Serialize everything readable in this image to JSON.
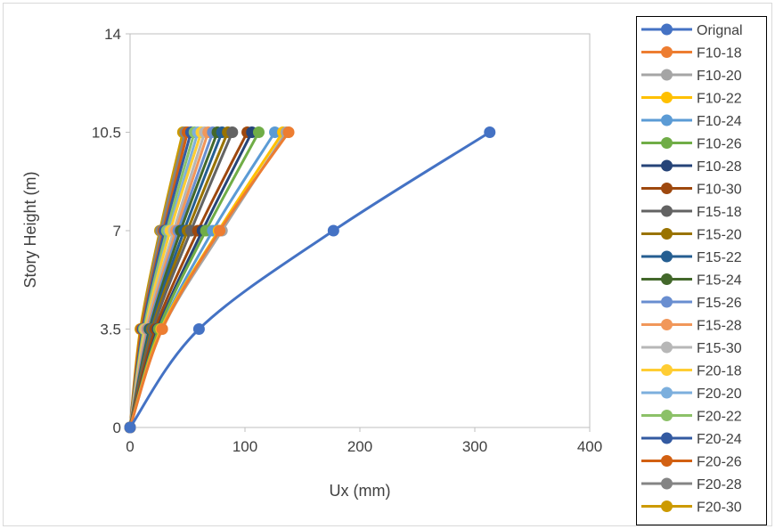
{
  "chart_data": {
    "type": "line",
    "title": "",
    "xlabel": "Ux (mm)",
    "ylabel": "Story Height (m)",
    "xlim": [
      0,
      400
    ],
    "ylim": [
      0,
      14
    ],
    "x_ticks": [
      "0",
      "100",
      "200",
      "300",
      "400"
    ],
    "y_ticks": [
      "0",
      "3.5",
      "7",
      "10.5",
      "14"
    ],
    "y_tick_values": [
      0,
      3.5,
      7,
      10.5,
      14
    ],
    "x_tick_values": [
      0,
      100,
      200,
      300,
      400
    ],
    "y": [
      0,
      3.5,
      7,
      10.5
    ],
    "grid": false,
    "legend_position": "right",
    "series": [
      {
        "name": "Orignal",
        "color": "#4472C4",
        "x": [
          0,
          60,
          177,
          313
        ]
      },
      {
        "name": "F10-18",
        "color": "#ED7D31",
        "x": [
          0,
          28,
          78,
          138
        ]
      },
      {
        "name": "F10-20",
        "color": "#A5A5A5",
        "x": [
          0,
          28,
          80,
          136
        ]
      },
      {
        "name": "F10-22",
        "color": "#FFC000",
        "x": [
          0,
          27,
          77,
          133
        ]
      },
      {
        "name": "F10-24",
        "color": "#5B9BD5",
        "x": [
          0,
          27,
          72,
          126
        ]
      },
      {
        "name": "F10-26",
        "color": "#70AD47",
        "x": [
          0,
          25,
          66,
          112
        ]
      },
      {
        "name": "F10-28",
        "color": "#264478",
        "x": [
          0,
          24,
          63,
          106
        ]
      },
      {
        "name": "F10-30",
        "color": "#9E480E",
        "x": [
          0,
          22,
          59,
          102
        ]
      },
      {
        "name": "F15-18",
        "color": "#636363",
        "x": [
          0,
          20,
          53,
          89
        ]
      },
      {
        "name": "F15-20",
        "color": "#997300",
        "x": [
          0,
          19,
          50,
          85
        ]
      },
      {
        "name": "F15-22",
        "color": "#255E91",
        "x": [
          0,
          18,
          47,
          80
        ]
      },
      {
        "name": "F15-24",
        "color": "#43682B",
        "x": [
          0,
          17,
          44,
          76
        ]
      },
      {
        "name": "F15-26",
        "color": "#698ED0",
        "x": [
          0,
          16,
          42,
          72
        ]
      },
      {
        "name": "F15-28",
        "color": "#F1975A",
        "x": [
          0,
          15,
          40,
          68
        ]
      },
      {
        "name": "F15-30",
        "color": "#B7B7B7",
        "x": [
          0,
          14,
          38,
          65
        ]
      },
      {
        "name": "F20-18",
        "color": "#FFCD33",
        "x": [
          0,
          13,
          35,
          62
        ]
      },
      {
        "name": "F20-20",
        "color": "#7CAFDD",
        "x": [
          0,
          13,
          34,
          59
        ]
      },
      {
        "name": "F20-22",
        "color": "#8CC168",
        "x": [
          0,
          12,
          32,
          56
        ]
      },
      {
        "name": "F20-24",
        "color": "#335AA1",
        "x": [
          0,
          11,
          30,
          53
        ]
      },
      {
        "name": "F20-26",
        "color": "#D26012",
        "x": [
          0,
          10,
          29,
          50
        ]
      },
      {
        "name": "F20-28",
        "color": "#848484",
        "x": [
          0,
          10,
          27,
          48
        ]
      },
      {
        "name": "F20-30",
        "color": "#CC9A00",
        "x": [
          0,
          9,
          26,
          46
        ]
      }
    ]
  }
}
